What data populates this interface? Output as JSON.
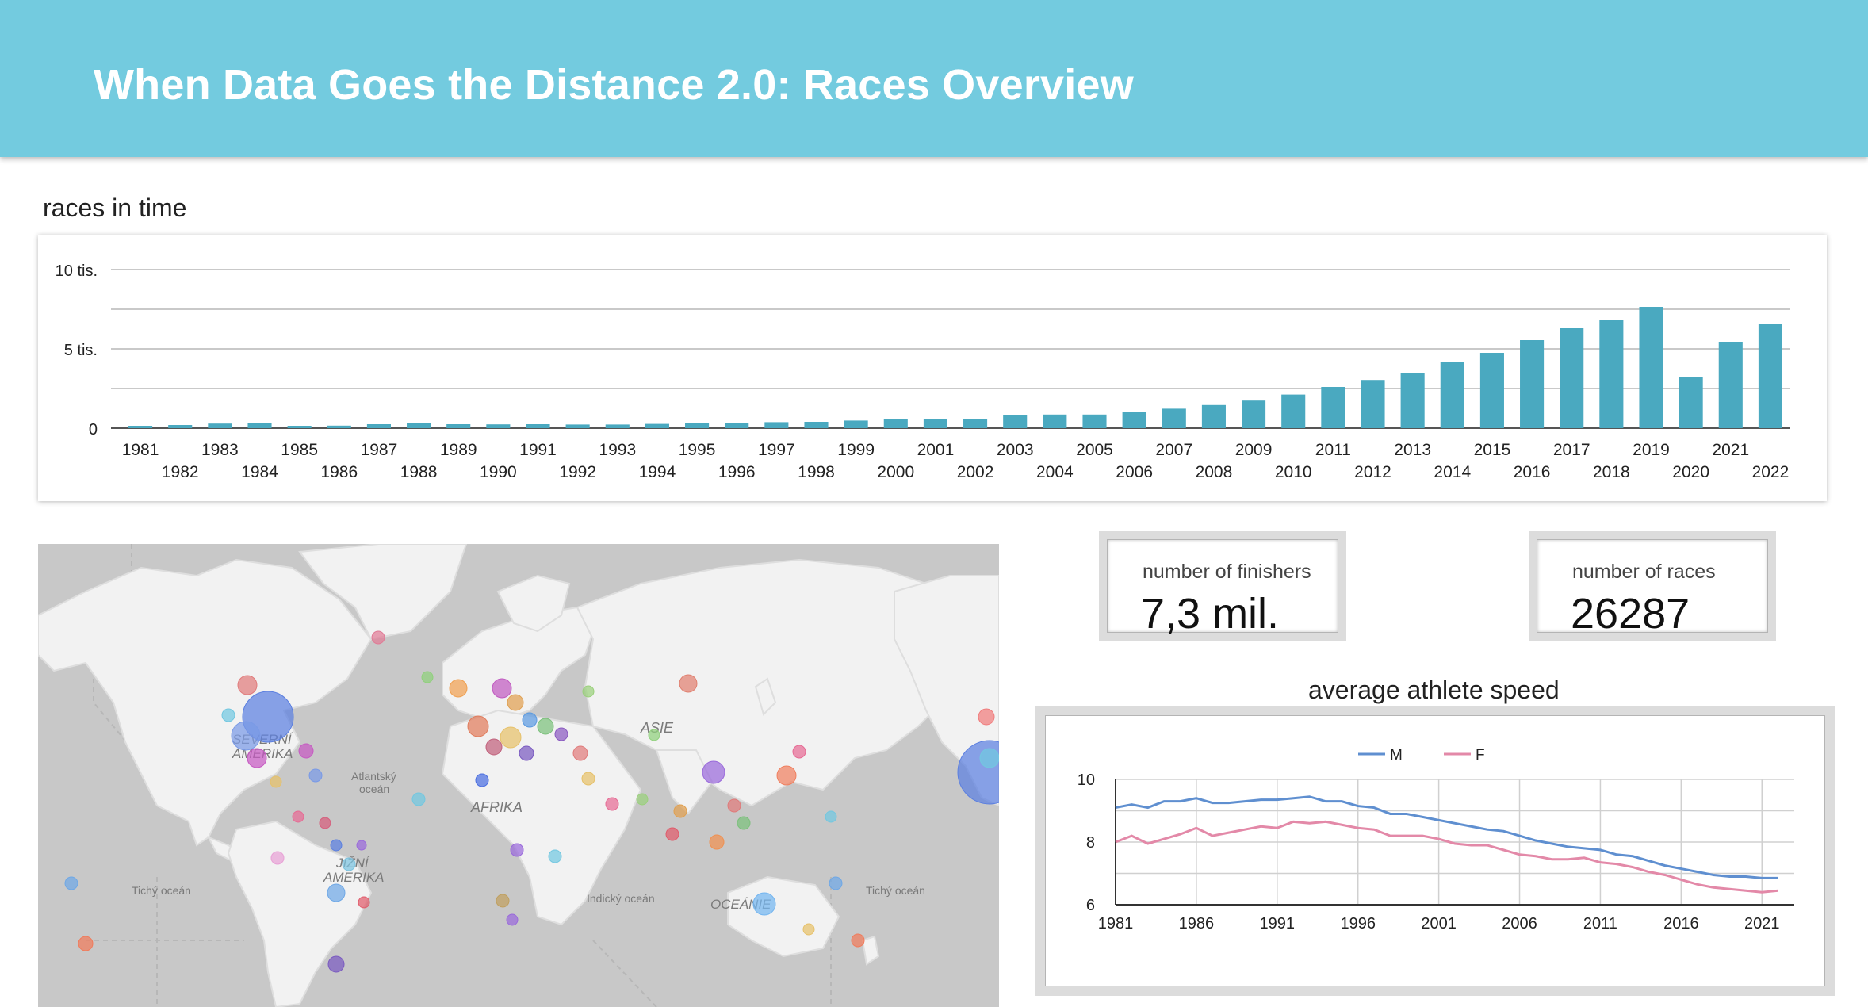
{
  "header": {
    "title": "When Data Goes the Distance 2.0: Races Overview"
  },
  "races_chart": {
    "title": "races in time",
    "y_tick_labels": [
      "10 tis.",
      "5 tis.",
      "0"
    ],
    "bar_color": "#4aa9c0"
  },
  "map": {
    "labels": {
      "north_america": "SEVERNÍ\nAMERIKA",
      "south_america": "JIŽNÍ\nAMERIKA",
      "africa": "AFRIKA",
      "asia": "ASIE",
      "oceania": "OCEÁNIE",
      "atlantic": "Atlantský\noceán",
      "indian": "Indický oceán",
      "pacific_left": "Tichý oceán",
      "pacific_right": "Tichý oceán"
    }
  },
  "kpis": {
    "finishers": {
      "label": "number of finishers",
      "value": "7,3 mil."
    },
    "races": {
      "label": "number of races",
      "value": "26287"
    }
  },
  "speed_chart": {
    "title": "average athlete speed",
    "legend": {
      "m": "M",
      "f": "F"
    },
    "colors": {
      "m": "#5f8fd0",
      "f": "#e389a8"
    }
  },
  "chart_data": [
    {
      "type": "bar",
      "title": "races in time",
      "ylim": [
        0,
        10000
      ],
      "y_ticks": [
        "10 tis.",
        "5 tis.",
        "0"
      ],
      "grid": true,
      "categories": [
        "1981",
        "1982",
        "1983",
        "1984",
        "1985",
        "1986",
        "1987",
        "1988",
        "1989",
        "1990",
        "1991",
        "1992",
        "1993",
        "1994",
        "1995",
        "1996",
        "1997",
        "1998",
        "1999",
        "2000",
        "2001",
        "2002",
        "2003",
        "2004",
        "2005",
        "2006",
        "2007",
        "2008",
        "2009",
        "2010",
        "2011",
        "2012",
        "2013",
        "2014",
        "2015",
        "2016",
        "2017",
        "2018",
        "2019",
        "2020",
        "2021",
        "2022"
      ],
      "values": [
        150,
        200,
        290,
        300,
        150,
        160,
        250,
        320,
        250,
        240,
        250,
        230,
        230,
        270,
        330,
        340,
        380,
        400,
        480,
        560,
        580,
        580,
        840,
        860,
        860,
        1040,
        1230,
        1460,
        1740,
        2120,
        2600,
        3040,
        3480,
        4150,
        4750,
        5550,
        6300,
        6850,
        7650,
        3220,
        5450,
        6550
      ]
    },
    {
      "type": "line",
      "title": "average athlete speed",
      "ylim": [
        6,
        10
      ],
      "y_ticks": [
        10,
        8,
        6
      ],
      "x_ticks": [
        "1981",
        "1986",
        "1991",
        "1996",
        "2001",
        "2006",
        "2011",
        "2016",
        "2021"
      ],
      "legend": "top",
      "grid": true,
      "x": [
        1981,
        1982,
        1983,
        1984,
        1985,
        1986,
        1987,
        1988,
        1989,
        1990,
        1991,
        1992,
        1993,
        1994,
        1995,
        1996,
        1997,
        1998,
        1999,
        2000,
        2001,
        2002,
        2003,
        2004,
        2005,
        2006,
        2007,
        2008,
        2009,
        2010,
        2011,
        2012,
        2013,
        2014,
        2015,
        2016,
        2017,
        2018,
        2019,
        2020,
        2021,
        2022
      ],
      "series": [
        {
          "name": "M",
          "values": [
            9.1,
            9.2,
            9.1,
            9.3,
            9.3,
            9.4,
            9.25,
            9.25,
            9.3,
            9.35,
            9.35,
            9.4,
            9.45,
            9.3,
            9.3,
            9.15,
            9.1,
            8.9,
            8.9,
            8.8,
            8.7,
            8.6,
            8.5,
            8.4,
            8.35,
            8.2,
            8.05,
            7.95,
            7.85,
            7.8,
            7.75,
            7.6,
            7.55,
            7.4,
            7.25,
            7.15,
            7.05,
            6.95,
            6.9,
            6.9,
            6.85,
            6.85
          ]
        },
        {
          "name": "F",
          "values": [
            8.0,
            8.2,
            7.95,
            8.1,
            8.25,
            8.45,
            8.2,
            8.3,
            8.4,
            8.5,
            8.45,
            8.65,
            8.6,
            8.65,
            8.55,
            8.45,
            8.4,
            8.2,
            8.2,
            8.2,
            8.1,
            7.95,
            7.9,
            7.9,
            7.75,
            7.6,
            7.55,
            7.45,
            7.45,
            7.5,
            7.35,
            7.3,
            7.2,
            7.05,
            6.95,
            6.8,
            6.65,
            6.55,
            6.5,
            6.45,
            6.4,
            6.45
          ]
        }
      ]
    }
  ]
}
